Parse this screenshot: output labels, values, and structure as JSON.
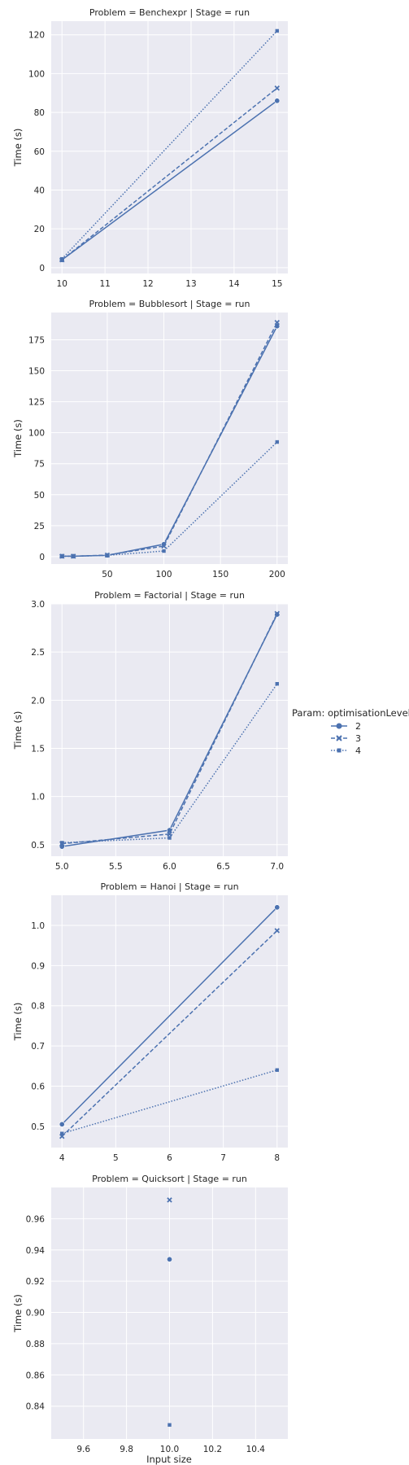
{
  "figure": {
    "x_label": "Input size",
    "y_label": "Time (s)"
  },
  "legend": {
    "title": "Param: optimisationLevel",
    "entries": [
      "2",
      "3",
      "4"
    ]
  },
  "colors": {
    "series": "#4c72b0",
    "panel_bg": "#eaeaf2",
    "grid": "#ffffff",
    "text": "#262626"
  },
  "chart_data": [
    {
      "type": "line",
      "title": "Problem = Benchexpr | Stage = run",
      "xlabel": "",
      "ylabel": "Time (s)",
      "xlim": [
        9.75,
        15.25
      ],
      "ylim": [
        -3,
        127
      ],
      "xticks": [
        10,
        11,
        12,
        13,
        14,
        15
      ],
      "xtick_labels": [
        "10",
        "11",
        "12",
        "13",
        "14",
        "15"
      ],
      "yticks": [
        0,
        20,
        40,
        60,
        80,
        100,
        120
      ],
      "ytick_labels": [
        "0",
        "20",
        "40",
        "60",
        "80",
        "100",
        "120"
      ],
      "series": [
        {
          "name": "2",
          "x": [
            10,
            15
          ],
          "y": [
            4.0,
            86.0
          ]
        },
        {
          "name": "3",
          "x": [
            10,
            15
          ],
          "y": [
            4.0,
            92.5
          ]
        },
        {
          "name": "4",
          "x": [
            10,
            15
          ],
          "y": [
            4.5,
            122.0
          ]
        }
      ]
    },
    {
      "type": "line",
      "title": "Problem = Bubblesort | Stage = run",
      "xlabel": "",
      "ylabel": "Time (s)",
      "xlim": [
        0.5,
        209.5
      ],
      "ylim": [
        -6,
        197
      ],
      "xticks": [
        50,
        100,
        150,
        200
      ],
      "xtick_labels": [
        "50",
        "100",
        "150",
        "200"
      ],
      "yticks": [
        0,
        25,
        50,
        75,
        100,
        125,
        150,
        175
      ],
      "ytick_labels": [
        "0",
        "25",
        "50",
        "75",
        "100",
        "125",
        "150",
        "175"
      ],
      "series": [
        {
          "name": "2",
          "x": [
            10,
            20,
            50,
            100,
            200
          ],
          "y": [
            0.3,
            0.3,
            1.0,
            10.0,
            186.0
          ]
        },
        {
          "name": "3",
          "x": [
            10,
            20,
            50,
            100,
            200
          ],
          "y": [
            0.3,
            0.3,
            1.2,
            8.5,
            189.0
          ]
        },
        {
          "name": "4",
          "x": [
            10,
            20,
            50,
            100,
            200
          ],
          "y": [
            0.3,
            0.3,
            1.0,
            4.5,
            92.5
          ]
        }
      ]
    },
    {
      "type": "line",
      "title": "Problem = Factorial | Stage = run",
      "xlabel": "",
      "ylabel": "Time (s)",
      "xlim": [
        4.9,
        7.1
      ],
      "ylim": [
        0.38,
        3.0
      ],
      "xticks": [
        5.0,
        5.5,
        6.0,
        6.5,
        7.0
      ],
      "xtick_labels": [
        "5.0",
        "5.5",
        "6.0",
        "6.5",
        "7.0"
      ],
      "yticks": [
        0.5,
        1.0,
        1.5,
        2.0,
        2.5,
        3.0
      ],
      "ytick_labels": [
        "0.5",
        "1.0",
        "1.5",
        "2.0",
        "2.5",
        "3.0"
      ],
      "series": [
        {
          "name": "2",
          "x": [
            5,
            6,
            7
          ],
          "y": [
            0.48,
            0.65,
            2.89
          ]
        },
        {
          "name": "3",
          "x": [
            5,
            6,
            7
          ],
          "y": [
            0.51,
            0.61,
            2.9
          ]
        },
        {
          "name": "4",
          "x": [
            5,
            6,
            7
          ],
          "y": [
            0.52,
            0.57,
            2.17
          ]
        }
      ]
    },
    {
      "type": "line",
      "title": "Problem = Hanoi | Stage = run",
      "xlabel": "",
      "ylabel": "Time (s)",
      "xlim": [
        3.8,
        8.2
      ],
      "ylim": [
        0.447,
        1.075
      ],
      "xticks": [
        4,
        5,
        6,
        7,
        8
      ],
      "xtick_labels": [
        "4",
        "5",
        "6",
        "7",
        "8"
      ],
      "yticks": [
        0.5,
        0.6,
        0.7,
        0.8,
        0.9,
        1.0
      ],
      "ytick_labels": [
        "0.5",
        "0.6",
        "0.7",
        "0.8",
        "0.9",
        "1.0"
      ],
      "series": [
        {
          "name": "2",
          "x": [
            4,
            8
          ],
          "y": [
            0.505,
            1.045
          ]
        },
        {
          "name": "3",
          "x": [
            4,
            8
          ],
          "y": [
            0.475,
            0.987
          ]
        },
        {
          "name": "4",
          "x": [
            4,
            8
          ],
          "y": [
            0.482,
            0.64
          ]
        }
      ]
    },
    {
      "type": "scatter",
      "title": "Problem = Quicksort | Stage = run",
      "xlabel": "Input size",
      "ylabel": "Time (s)",
      "xlim": [
        9.45,
        10.55
      ],
      "ylim": [
        0.819,
        0.98
      ],
      "xticks": [
        9.6,
        9.8,
        10.0,
        10.2,
        10.4
      ],
      "xtick_labels": [
        "9.6",
        "9.8",
        "10.0",
        "10.2",
        "10.4"
      ],
      "yticks": [
        0.84,
        0.86,
        0.88,
        0.9,
        0.92,
        0.94,
        0.96
      ],
      "ytick_labels": [
        "0.84",
        "0.86",
        "0.88",
        "0.90",
        "0.92",
        "0.94",
        "0.96"
      ],
      "series": [
        {
          "name": "2",
          "x": [
            10
          ],
          "y": [
            0.934
          ]
        },
        {
          "name": "3",
          "x": [
            10
          ],
          "y": [
            0.972
          ]
        },
        {
          "name": "4",
          "x": [
            10
          ],
          "y": [
            0.828
          ]
        }
      ]
    }
  ]
}
